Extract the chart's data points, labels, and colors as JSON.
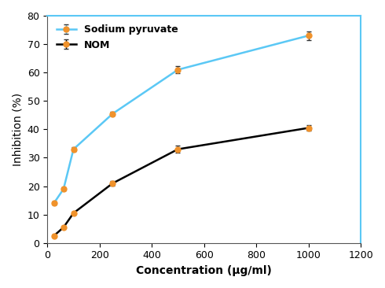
{
  "sodium_pyruvate_x": [
    25,
    62,
    100,
    250,
    500,
    1000
  ],
  "sodium_pyruvate_y": [
    14.0,
    19.0,
    33.0,
    45.5,
    61.0,
    73.0
  ],
  "sodium_pyruvate_yerr": [
    0.6,
    0.6,
    0.6,
    0.6,
    1.2,
    1.5
  ],
  "nom_x": [
    25,
    62,
    100,
    250,
    500,
    1000
  ],
  "nom_y": [
    2.5,
    5.5,
    10.5,
    21.0,
    33.0,
    40.5
  ],
  "nom_yerr": [
    0.4,
    0.4,
    0.4,
    0.8,
    1.2,
    1.0
  ],
  "sp_line_color": "#5bc8f5",
  "nom_line_color": "#000000",
  "marker_color": "#f0922b",
  "sp_label": "Sodium pyruvate",
  "nom_label": "NOM",
  "xlabel": "Concentration (µg/ml)",
  "ylabel": "Inhibition (%)",
  "xlim": [
    0,
    1100
  ],
  "ylim": [
    0,
    80
  ],
  "xticks": [
    0,
    200,
    400,
    600,
    800,
    1000,
    1200
  ],
  "yticks": [
    0,
    10,
    20,
    30,
    40,
    50,
    60,
    70,
    80
  ],
  "spine_color_lr": "#aaaaaa",
  "spine_color_top": "#5bc8f5",
  "spine_color_right": "#5bc8f5",
  "bg_color": "#ffffff",
  "legend_text_color": "#000000"
}
